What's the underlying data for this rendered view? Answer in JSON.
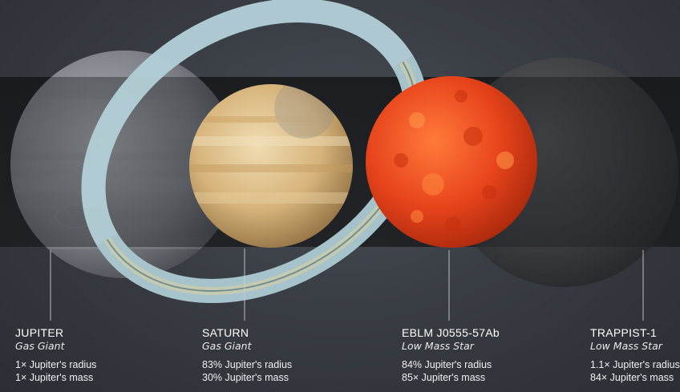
{
  "objects": [
    {
      "id": "jupiter",
      "name": "JUPITER",
      "type": "Gas Giant",
      "radius": "1× Jupiter's radius",
      "mass": "1× Jupiter's mass",
      "color": "#9a9ea4"
    },
    {
      "id": "saturn",
      "name": "SATURN",
      "type": "Gas Giant",
      "radius": "83% Jupiter's radius",
      "mass": "30% Jupiter's mass",
      "color": "#d9b883"
    },
    {
      "id": "eblm",
      "name": "EBLM J0555-57Ab",
      "type": "Low Mass Star",
      "radius": "84% Jupiter's radius",
      "mass": "85× Jupiter's mass",
      "color": "#e8441c"
    },
    {
      "id": "trappist",
      "name": "TRAPPIST-1",
      "type": "Low Mass Star",
      "radius": "1.1× Jupiter's radius",
      "mass": "84× Jupiter's mass",
      "color": "#3c3d40"
    }
  ],
  "colors": {
    "background": "#3a3e45",
    "band": "#1c1d20",
    "ring": "#a9c6cf",
    "pointer_line": "#c9ccd0"
  }
}
